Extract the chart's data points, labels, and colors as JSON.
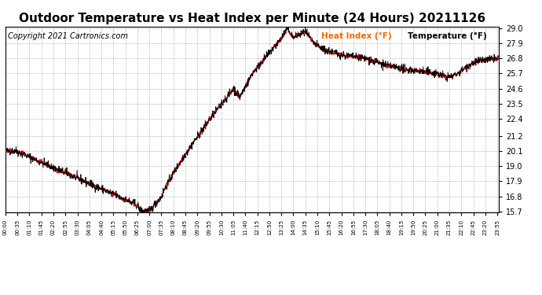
{
  "title": "Outdoor Temperature vs Heat Index per Minute (24 Hours) 20211126",
  "copyright": "Copyright 2021 Cartronics.com",
  "legend_heat": "Heat Index (°F)",
  "legend_temp": "Temperature (°F)",
  "heat_color": "#cc0000",
  "temp_color": "#000000",
  "legend_heat_color": "#ff6600",
  "background_color": "#ffffff",
  "grid_color": "#999999",
  "ylim": [
    15.7,
    29.0
  ],
  "yticks": [
    15.7,
    16.8,
    17.9,
    19.0,
    20.1,
    21.2,
    22.4,
    23.5,
    24.6,
    25.7,
    26.8,
    27.9,
    29.0
  ],
  "title_fontsize": 11,
  "copyright_fontsize": 7
}
